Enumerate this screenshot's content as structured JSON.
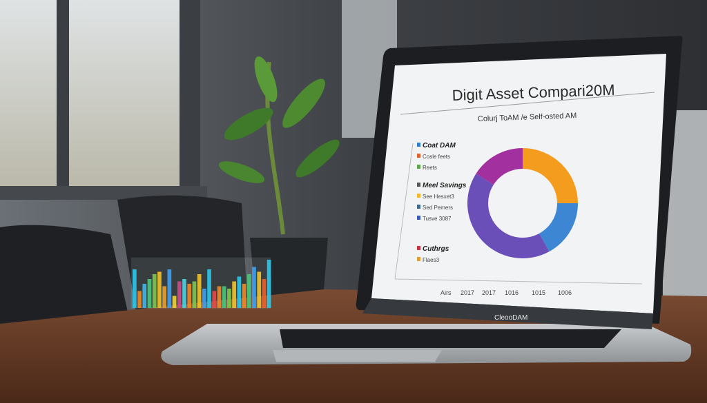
{
  "screen": {
    "title": "Digit Asset Compari20M",
    "subtitle": "Colurj ToAM /e Self-osted AM",
    "legend_groups": [
      {
        "heading": "Coat DAM",
        "color": "#2f7fd0",
        "items": [
          {
            "label": "Cosle feets",
            "color": "#e2622a"
          },
          {
            "label": "Reets",
            "color": "#5aa84a"
          }
        ]
      },
      {
        "heading": "Meel Savings",
        "color": "#555555",
        "items": [
          {
            "label": "See Hesxet3",
            "color": "#f2b630"
          },
          {
            "label": "Sed Pemers",
            "color": "#3c6a8a"
          },
          {
            "label": "Tusve 3087",
            "color": "#3a5ab8"
          }
        ]
      },
      {
        "heading": "Cuthrgs",
        "color": "#c8323a",
        "items": [
          {
            "label": "Flaes3",
            "color": "#e0a030"
          }
        ]
      }
    ],
    "axis_labels": [
      "Airs",
      "2017",
      "2017",
      "1016",
      "1015",
      "1006"
    ],
    "donut": [
      {
        "color": "#f39c1e",
        "share": 25
      },
      {
        "color": "#3d86d4",
        "share": 17
      },
      {
        "color": "#6a4fb8",
        "share": 42
      },
      {
        "color": "#a3309f",
        "share": 16
      }
    ]
  },
  "laptop_brand": "CleooDAM",
  "hologram_chart": {
    "bars": [
      0.8,
      0.35,
      0.5,
      0.6,
      0.7,
      0.75,
      0.45,
      0.8,
      0.25,
      0.55,
      0.6,
      0.5,
      0.55,
      0.7,
      0.4,
      0.8,
      0.35,
      0.45,
      0.45,
      0.4,
      0.55,
      0.65,
      0.5,
      0.7,
      0.85,
      0.75,
      0.6,
      1.0
    ],
    "colors": [
      "#2cc6e8",
      "#f08a24",
      "#3fb7ea",
      "#4cc47a",
      "#7dc84a",
      "#f2c229",
      "#e8a030",
      "#3fa0f0",
      "#f2d23a",
      "#d04a8a",
      "#4cd0e0",
      "#f08a24",
      "#7dc84a",
      "#f2c229",
      "#3fa0f0",
      "#2cc6e8",
      "#e24a4a",
      "#f08a24",
      "#4cc47a",
      "#7dc84a",
      "#f2c229",
      "#2cc6e8",
      "#f08a24",
      "#4cc47a",
      "#3fa0f0",
      "#f2c229",
      "#e8602a",
      "#2cc6e8"
    ]
  }
}
